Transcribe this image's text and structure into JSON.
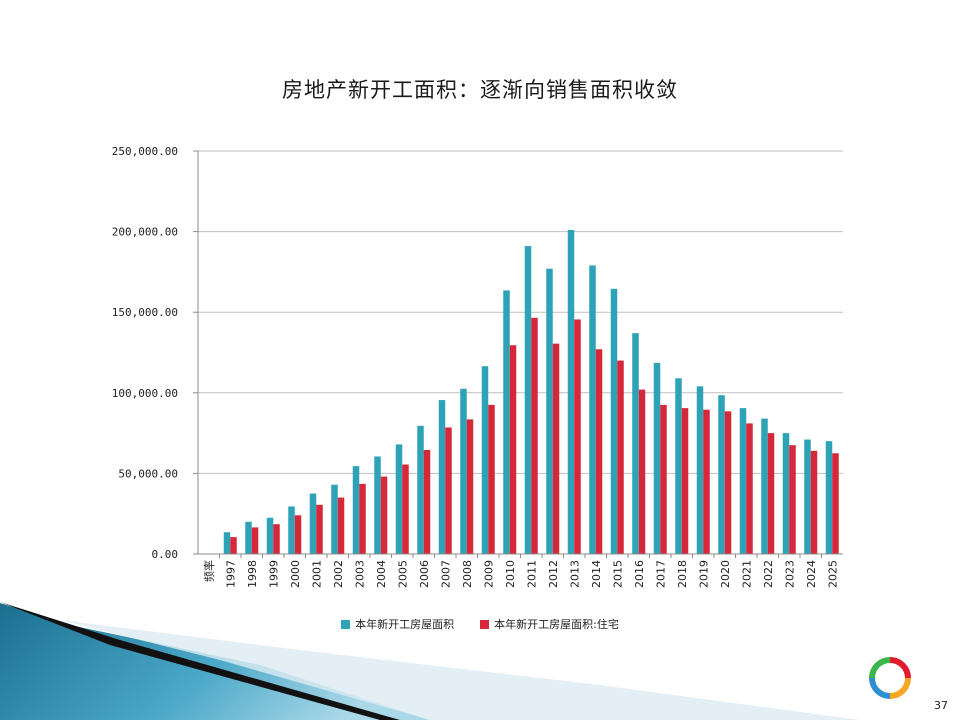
{
  "slide": {
    "page_number": "37"
  },
  "colors": {
    "series_total": "#2ea3b7",
    "series_residential": "#d6283a",
    "grid": "#bfbfbf",
    "axis": "#8c8c8c"
  },
  "chart_data": {
    "type": "bar",
    "title": "房地产新开工面积：逐渐向销售面积收敛",
    "frequency_label": "频率",
    "categories": [
      "1997",
      "1998",
      "1999",
      "2000",
      "2001",
      "2002",
      "2003",
      "2004",
      "2005",
      "2006",
      "2007",
      "2008",
      "2009",
      "2010",
      "2011",
      "2012",
      "2013",
      "2014",
      "2015",
      "2016",
      "2017",
      "2018",
      "2019",
      "2020",
      "2021",
      "2022",
      "2023",
      "2024",
      "2025"
    ],
    "series": [
      {
        "name": "本年新开工房屋面积",
        "values": [
          13500,
          20000,
          22500,
          29500,
          37500,
          43000,
          54500,
          60500,
          68000,
          79500,
          95500,
          102500,
          116500,
          163500,
          191000,
          177000,
          201000,
          179000,
          164500,
          137000,
          118500,
          109000,
          104000,
          98500,
          90500,
          84000,
          75000,
          71000,
          70000
        ]
      },
      {
        "name": "本年新开工房屋面积:住宅",
        "values": [
          10500,
          16500,
          18500,
          24000,
          30500,
          35000,
          43500,
          48000,
          55500,
          64500,
          78500,
          83500,
          92500,
          129500,
          146500,
          130500,
          145500,
          127000,
          120000,
          102000,
          92500,
          90500,
          89500,
          88500,
          81000,
          75000,
          67500,
          64000,
          62500
        ]
      }
    ],
    "ylim": [
      0,
      250000
    ],
    "yticks": [
      0,
      50000,
      100000,
      150000,
      200000,
      250000
    ],
    "ytick_labels": [
      "0.00",
      "50,000.00",
      "100,000.00",
      "150,000.00",
      "200,000.00",
      "250,000.00"
    ],
    "grid": true,
    "legend_position": "bottom"
  }
}
